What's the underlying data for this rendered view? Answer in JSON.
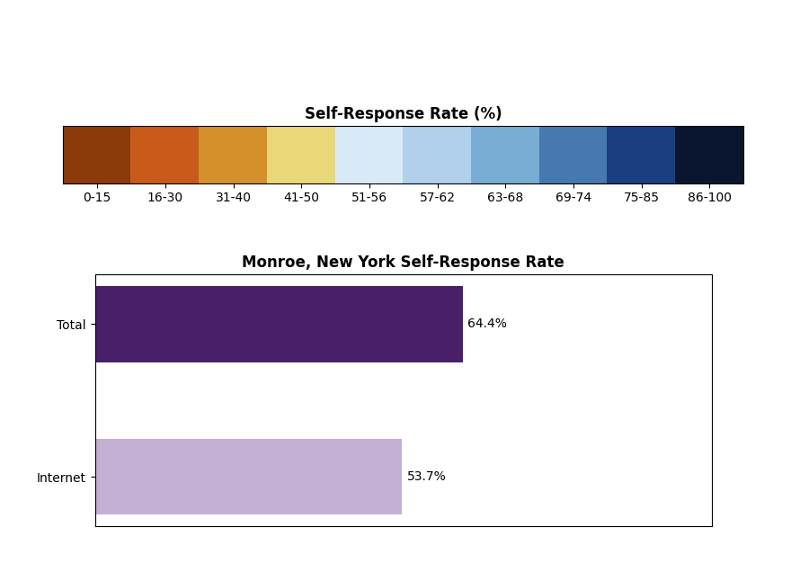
{
  "chart_data": [
    {
      "type": "color_scale",
      "title": "Self-Response Rate (%)",
      "categories": [
        "0-15",
        "16-30",
        "31-40",
        "41-50",
        "51-56",
        "57-62",
        "63-68",
        "69-74",
        "75-85",
        "86-100"
      ],
      "colors": [
        "#8B3A0A",
        "#C85A1A",
        "#D4902A",
        "#E8D878",
        "#D8EAF8",
        "#B0D0EC",
        "#7AADD4",
        "#4878B0",
        "#1A3F80",
        "#0A1530"
      ],
      "tick_labels": "x"
    },
    {
      "type": "bar",
      "orientation": "horizontal",
      "title": "Monroe, New York Self-Response Rate",
      "categories": [
        "Total",
        "Internet"
      ],
      "values": [
        64.4,
        53.7
      ],
      "value_labels": [
        "64.4%",
        "53.7%"
      ],
      "data_labels": true,
      "colors": [
        "#4A1F6A",
        "#C4B0D4"
      ],
      "xlim": [
        0,
        108
      ],
      "tick_labels": "y"
    }
  ]
}
